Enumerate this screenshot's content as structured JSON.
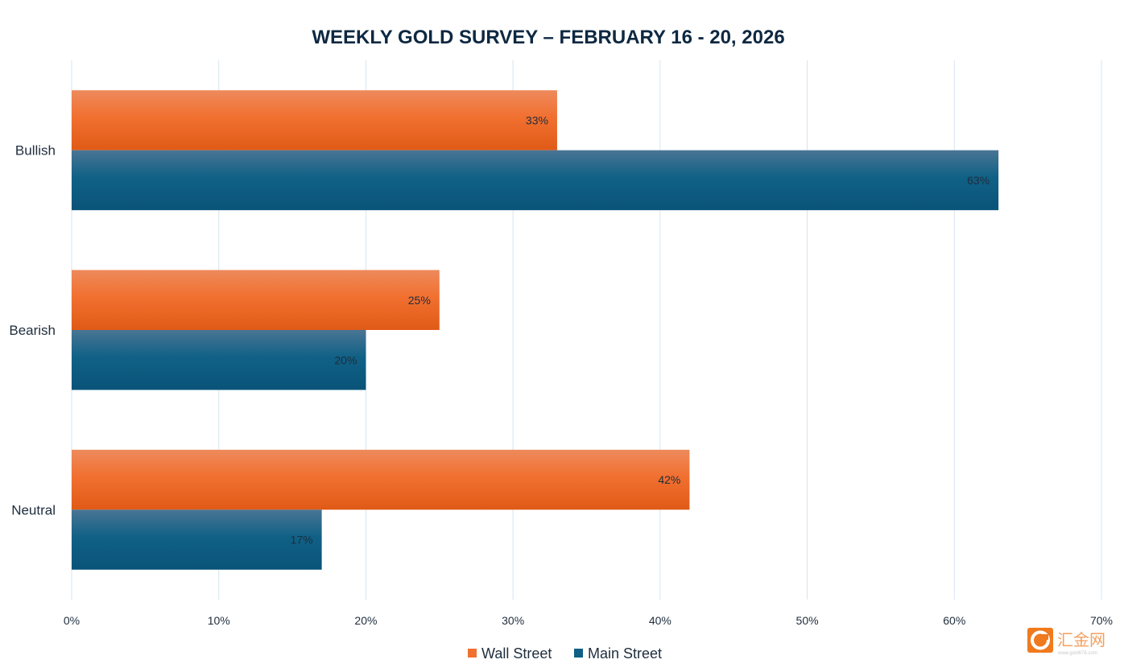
{
  "chart_data": {
    "type": "bar",
    "orientation": "horizontal",
    "title": "WEEKLY GOLD SURVEY – FEBRUARY 16 - 20, 2026",
    "categories": [
      "Bullish",
      "Bearish",
      "Neutral"
    ],
    "series": [
      {
        "name": "Wall Street",
        "values": [
          33,
          25,
          42
        ],
        "color": "#f07030",
        "labels": [
          "33%",
          "25%",
          "42%"
        ]
      },
      {
        "name": "Main Street",
        "values": [
          63,
          20,
          17
        ],
        "color": "#0f5f86",
        "labels": [
          "63%",
          "20%",
          "17%"
        ]
      }
    ],
    "xlim": [
      0,
      70
    ],
    "xticks": [
      0,
      10,
      20,
      30,
      40,
      50,
      60,
      70
    ],
    "xtick_labels": [
      "0%",
      "10%",
      "20%",
      "30%",
      "40%",
      "50%",
      "60%",
      "70%"
    ],
    "grid": "vertical",
    "legend": "bottom-center"
  },
  "watermark": {
    "logo_text": "汇金网",
    "url_text": "www.gold678.com",
    "color": "#f07a1e"
  }
}
